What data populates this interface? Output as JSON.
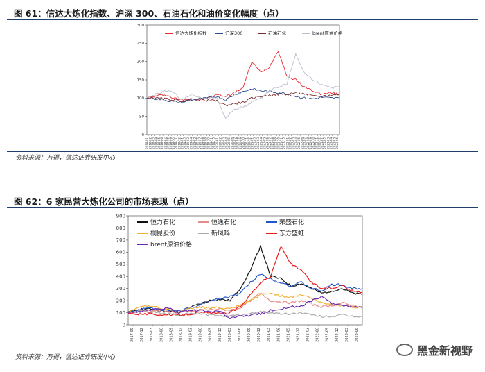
{
  "figure1": {
    "title": "图 61：信达大炼化指数、沪深 300、石油石化和油价变化幅度（点）",
    "source": "资料来源：万得，信达证券研发中心"
  },
  "figure2": {
    "title": "图 62：6 家民营大炼化公司的市场表现（点）",
    "source": "资料来源：万得，信达证券研发中心"
  },
  "watermark": "黑金新视野",
  "chart_data": [
    {
      "type": "line",
      "ylim": [
        0,
        300
      ],
      "yticks": [
        0,
        50,
        100,
        150,
        200,
        250,
        300
      ],
      "xticks": [
        "2018-01",
        "2018-02",
        "2018-03",
        "2018-04",
        "2018-05",
        "2018-06",
        "2018-07",
        "2018-08",
        "2018-09",
        "2018-10",
        "2018-11",
        "2018-12",
        "2019-01",
        "2019-02",
        "2019-03",
        "2019-04",
        "2019-05",
        "2019-06",
        "2019-07",
        "2019-08",
        "2019-09",
        "2019-10",
        "2019-11",
        "2019-12",
        "2020-01",
        "2020-02",
        "2020-03",
        "2020-04",
        "2020-05",
        "2020-06",
        "2020-07",
        "2020-08",
        "2020-09",
        "2020-10",
        "2020-11",
        "2020-12",
        "2021-01",
        "2021-02",
        "2021-03",
        "2021-04",
        "2021-05",
        "2021-06",
        "2021-07",
        "2021-08",
        "2021-09",
        "2021-10",
        "2021-11",
        "2021-12",
        "2022-01",
        "2022-02",
        "2022-03",
        "2022-04",
        "2022-05",
        "2022-06",
        "2022-07",
        "2022-08",
        "2022-09",
        "2022-10",
        "2022-11",
        "2022-12",
        "2023-01",
        "2023-02",
        "2023-03",
        "2023-04",
        "2023-05",
        "2023-06"
      ],
      "grid": false,
      "legend_position": "top",
      "x": [
        "2018-01",
        "2018-04",
        "2018-07",
        "2018-10",
        "2019-01",
        "2019-04",
        "2019-07",
        "2019-10",
        "2020-01",
        "2020-04",
        "2020-07",
        "2020-10",
        "2021-01",
        "2021-04",
        "2021-07",
        "2021-10",
        "2022-01",
        "2022-04",
        "2022-07",
        "2022-10",
        "2023-01",
        "2023-04",
        "2023-06"
      ],
      "series": [
        {
          "name": "信达大炼化指数",
          "color": "#e8252a",
          "values": [
            100,
            105,
            110,
            100,
            95,
            100,
            95,
            100,
            110,
            105,
            115,
            130,
            200,
            170,
            185,
            230,
            160,
            150,
            130,
            120,
            110,
            115,
            110
          ]
        },
        {
          "name": "沪深300",
          "color": "#2f4f8f",
          "values": [
            100,
            98,
            95,
            90,
            88,
            95,
            98,
            100,
            105,
            95,
            110,
            118,
            125,
            120,
            118,
            115,
            112,
            105,
            100,
            98,
            102,
            100,
            100
          ]
        },
        {
          "name": "石油石化",
          "color": "#7b2a2a",
          "values": [
            100,
            100,
            98,
            95,
            92,
            95,
            95,
            94,
            92,
            80,
            85,
            88,
            100,
            105,
            108,
            110,
            110,
            115,
            112,
            105,
            105,
            108,
            110
          ]
        },
        {
          "name": "brent原油价格",
          "color": "#b8bccc",
          "values": [
            100,
            110,
            120,
            115,
            95,
            110,
            100,
            100,
            100,
            45,
            70,
            75,
            90,
            100,
            120,
            130,
            140,
            220,
            170,
            150,
            135,
            130,
            130
          ]
        }
      ]
    },
    {
      "type": "line",
      "ylim": [
        0,
        900
      ],
      "yticks": [
        0,
        100,
        200,
        300,
        400,
        500,
        600,
        700,
        800,
        900
      ],
      "xticks": [
        "2017-09",
        "2017-12",
        "2018-03",
        "2018-06",
        "2018-09",
        "2018-12",
        "2019-03",
        "2019-06",
        "2019-09",
        "2019-12",
        "2020-03",
        "2020-06",
        "2020-09",
        "2020-12",
        "2021-03",
        "2021-06",
        "2021-09",
        "2021-12",
        "2022-03",
        "2022-06",
        "2022-09",
        "2022-12",
        "2023-03",
        "2023-06"
      ],
      "grid": false,
      "legend_position": "top-left",
      "x": [
        "2017-09",
        "2017-12",
        "2018-03",
        "2018-06",
        "2018-09",
        "2018-12",
        "2019-03",
        "2019-06",
        "2019-09",
        "2019-12",
        "2020-03",
        "2020-06",
        "2020-09",
        "2020-12",
        "2021-03",
        "2021-06",
        "2021-09",
        "2021-12",
        "2022-03",
        "2022-06",
        "2022-09",
        "2022-12",
        "2023-03",
        "2023-06"
      ],
      "series": [
        {
          "name": "恒力石化",
          "color": "#111111",
          "values": [
            100,
            130,
            130,
            120,
            110,
            100,
            140,
            170,
            200,
            210,
            200,
            300,
            450,
            650,
            400,
            380,
            320,
            340,
            300,
            260,
            280,
            300,
            260,
            250
          ]
        },
        {
          "name": "恒逸石化",
          "color": "#e88a8a",
          "values": [
            100,
            110,
            120,
            115,
            110,
            100,
            110,
            120,
            125,
            130,
            120,
            140,
            200,
            260,
            200,
            190,
            180,
            200,
            170,
            150,
            160,
            180,
            160,
            150
          ]
        },
        {
          "name": "荣盛石化",
          "color": "#2255cc",
          "values": [
            100,
            120,
            140,
            130,
            120,
            110,
            140,
            160,
            200,
            220,
            230,
            260,
            350,
            420,
            380,
            350,
            320,
            350,
            300,
            280,
            330,
            330,
            300,
            300
          ]
        },
        {
          "name": "桐昆股份",
          "color": "#f0b030",
          "values": [
            100,
            150,
            160,
            140,
            130,
            110,
            130,
            150,
            140,
            140,
            130,
            160,
            200,
            250,
            260,
            240,
            230,
            250,
            220,
            180,
            170,
            160,
            150,
            140
          ]
        },
        {
          "name": "新凤鸣",
          "color": "#aaaaaa",
          "values": [
            100,
            110,
            105,
            100,
            90,
            80,
            90,
            90,
            80,
            80,
            70,
            80,
            90,
            110,
            100,
            90,
            90,
            100,
            80,
            70,
            70,
            80,
            70,
            70
          ]
        },
        {
          "name": "东方盛虹",
          "color": "#e81818",
          "values": [
            100,
            90,
            90,
            85,
            80,
            80,
            90,
            100,
            100,
            90,
            100,
            150,
            250,
            350,
            400,
            650,
            500,
            450,
            350,
            300,
            300,
            330,
            280,
            270
          ]
        },
        {
          "name": "brent原油价格",
          "color": "#6a2ab0",
          "values": [
            100,
            110,
            120,
            130,
            140,
            100,
            120,
            120,
            110,
            110,
            50,
            70,
            80,
            90,
            120,
            130,
            150,
            150,
            200,
            230,
            180,
            160,
            150,
            140
          ]
        }
      ]
    }
  ]
}
